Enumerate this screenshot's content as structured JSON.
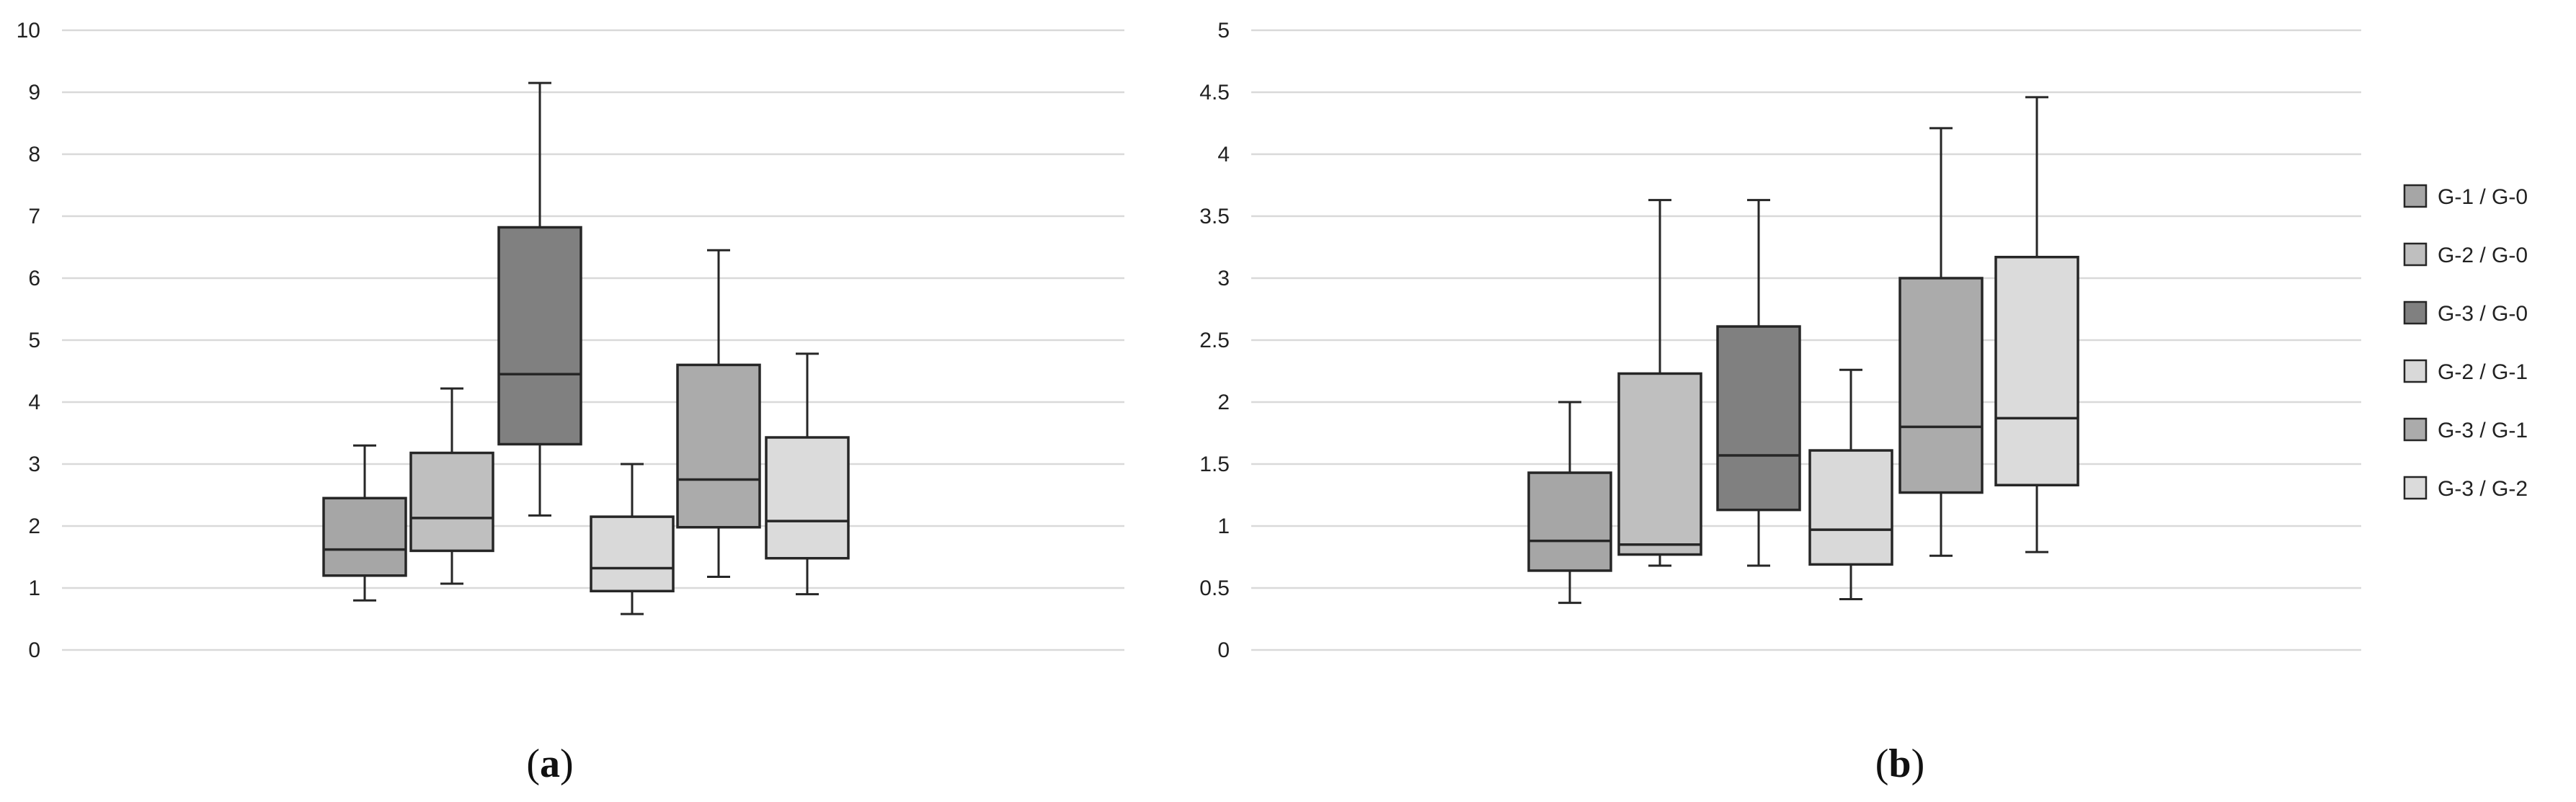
{
  "colors": {
    "G-1 / G-0": "#a6a6a6",
    "G-2 / G-0": "#bfbfbf",
    "G-3 / G-0": "#808080",
    "G-2 / G-1": "#d9d9d9",
    "G-3 / G-1": "#ababab",
    "G-3 / G-2": "#dbdbdb",
    "grid": "#d9d9d9",
    "stroke": "#262626"
  },
  "legend": {
    "placement": "right",
    "entries": [
      "G-1 / G-0",
      "G-2 / G-0",
      "G-3 / G-0",
      "G-2 / G-1",
      "G-3 / G-1",
      "G-3 / G-2"
    ]
  },
  "chart_data": [
    {
      "type": "box",
      "panel_label": "a",
      "ylim": [
        0,
        10
      ],
      "yticks": [
        "0",
        "1",
        "2",
        "3",
        "4",
        "5",
        "6",
        "7",
        "8",
        "9",
        "10"
      ],
      "grid": true,
      "series": [
        {
          "name": "G-1 / G-0",
          "min": 0.8,
          "q1": 1.2,
          "median": 1.62,
          "q3": 2.45,
          "max": 3.3
        },
        {
          "name": "G-2 / G-0",
          "min": 1.07,
          "q1": 1.6,
          "median": 2.13,
          "q3": 3.18,
          "max": 4.22
        },
        {
          "name": "G-3 / G-0",
          "min": 2.17,
          "q1": 3.32,
          "median": 4.45,
          "q3": 6.82,
          "max": 9.15
        },
        {
          "name": "G-2 / G-1",
          "min": 0.58,
          "q1": 0.95,
          "median": 1.32,
          "q3": 2.15,
          "max": 3.0
        },
        {
          "name": "G-3 / G-1",
          "min": 1.18,
          "q1": 1.98,
          "median": 2.75,
          "q3": 4.6,
          "max": 6.45
        },
        {
          "name": "G-3 / G-2",
          "min": 0.9,
          "q1": 1.48,
          "median": 2.08,
          "q3": 3.43,
          "max": 4.78
        }
      ]
    },
    {
      "type": "box",
      "panel_label": "b",
      "ylim": [
        0,
        5
      ],
      "yticks": [
        "0",
        "0.5",
        "1",
        "1.5",
        "2",
        "2.5",
        "3",
        "3.5",
        "4",
        "4.5",
        "5"
      ],
      "grid": true,
      "series": [
        {
          "name": "G-1 / G-0",
          "min": 0.38,
          "q1": 0.64,
          "median": 0.88,
          "q3": 1.43,
          "max": 2.0
        },
        {
          "name": "G-2 / G-0",
          "min": 0.68,
          "q1": 0.77,
          "median": 0.85,
          "q3": 2.23,
          "max": 3.63
        },
        {
          "name": "G-3 / G-0",
          "min": 0.68,
          "q1": 1.13,
          "median": 1.57,
          "q3": 2.61,
          "max": 3.63
        },
        {
          "name": "G-2 / G-1",
          "min": 0.41,
          "q1": 0.69,
          "median": 0.97,
          "q3": 1.61,
          "max": 2.26
        },
        {
          "name": "G-3 / G-1",
          "min": 0.76,
          "q1": 1.27,
          "median": 1.8,
          "q3": 3.0,
          "max": 4.21
        },
        {
          "name": "G-3 / G-2",
          "min": 0.79,
          "q1": 1.33,
          "median": 1.87,
          "q3": 3.17,
          "max": 4.46
        }
      ]
    }
  ]
}
